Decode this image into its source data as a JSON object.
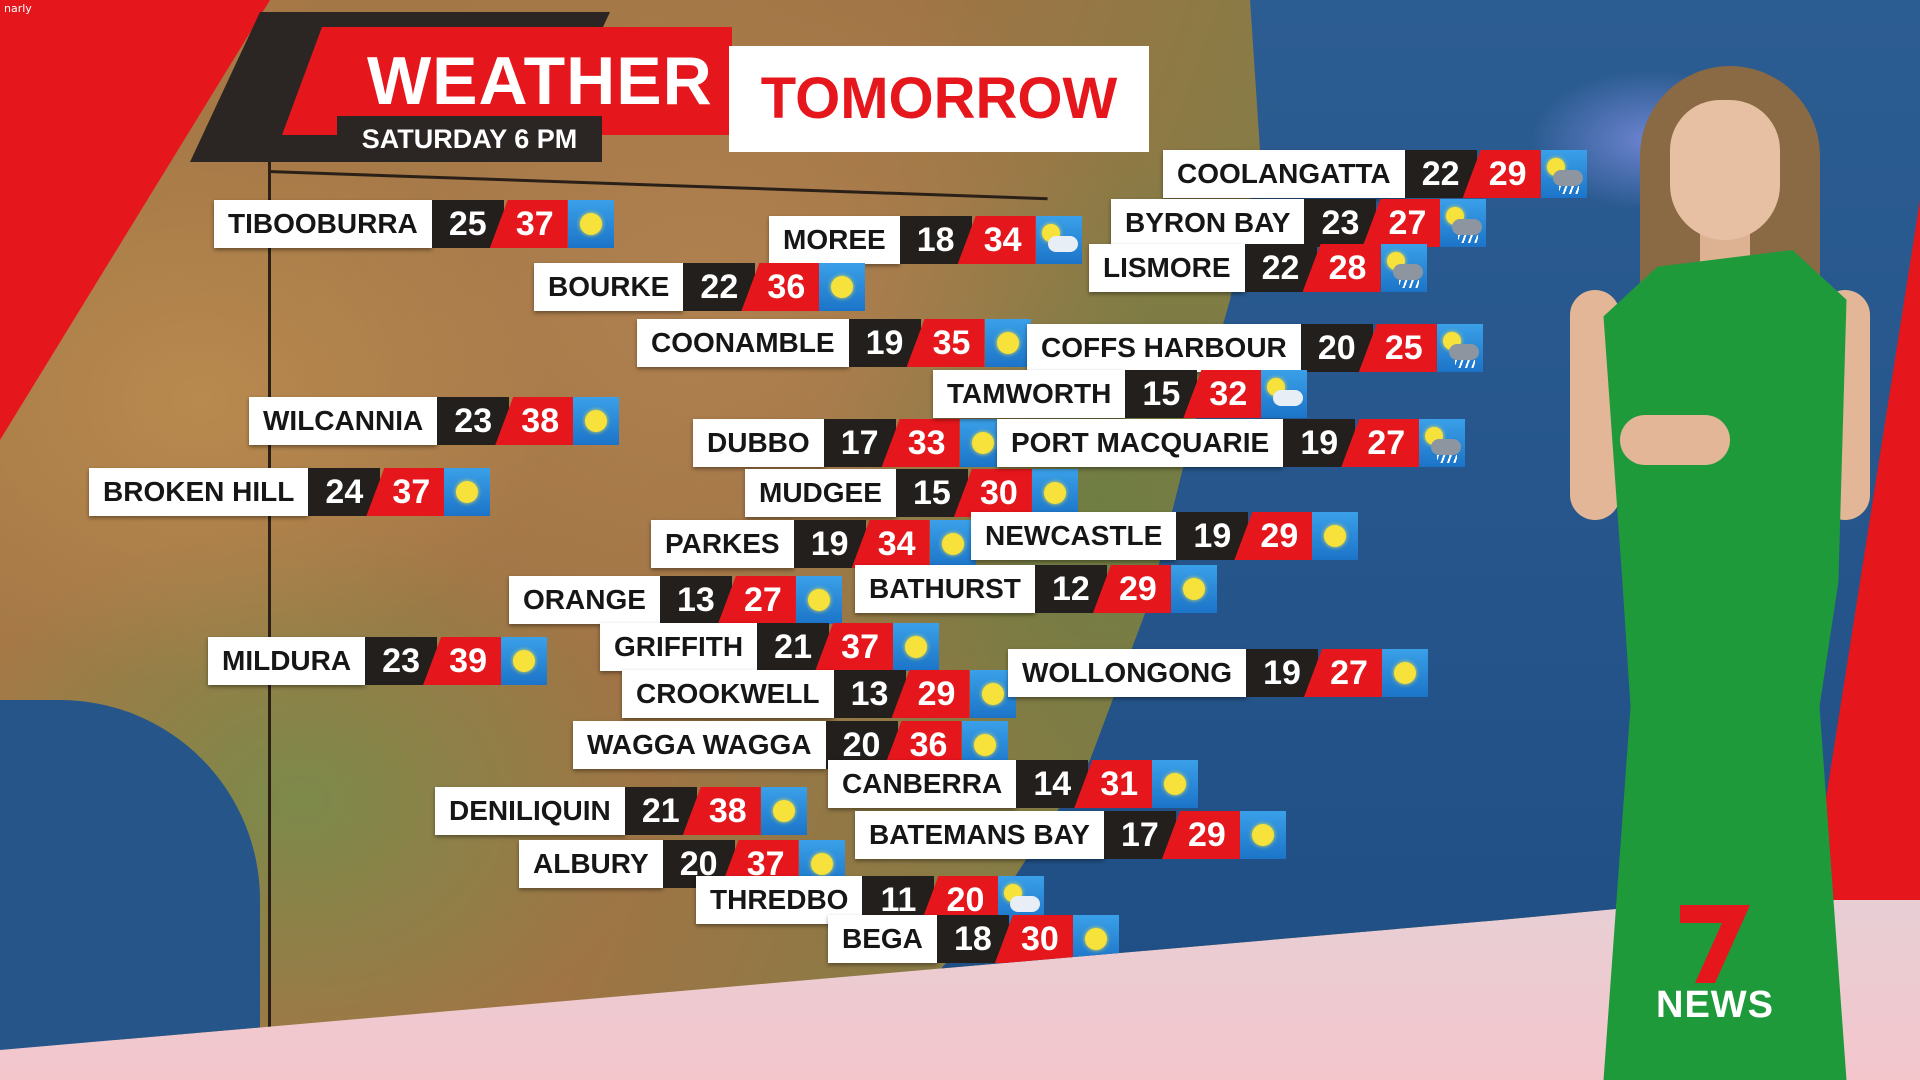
{
  "watermark": "narly",
  "header": {
    "title_main": "WEATHER",
    "title_sub": "TOMORROW",
    "time": "SATURDAY 6 PM"
  },
  "colors": {
    "brand_red": "#e5161c",
    "min_bg": "#231f1d",
    "icon_bg": "#2a8ce0",
    "dress": "#1f9a3a"
  },
  "cities": [
    {
      "name": "TIBOOBURRA",
      "min": "25",
      "max": "37",
      "icon": "sunny"
    },
    {
      "name": "MOREE",
      "min": "18",
      "max": "34",
      "icon": "partly-cloudy"
    },
    {
      "name": "BOURKE",
      "min": "22",
      "max": "36",
      "icon": "sunny"
    },
    {
      "name": "COONAMBLE",
      "min": "19",
      "max": "35",
      "icon": "sunny"
    },
    {
      "name": "WILCANNIA",
      "min": "23",
      "max": "38",
      "icon": "sunny"
    },
    {
      "name": "DUBBO",
      "min": "17",
      "max": "33",
      "icon": "sunny"
    },
    {
      "name": "BROKEN HILL",
      "min": "24",
      "max": "37",
      "icon": "sunny"
    },
    {
      "name": "MUDGEE",
      "min": "15",
      "max": "30",
      "icon": "sunny"
    },
    {
      "name": "PARKES",
      "min": "19",
      "max": "34",
      "icon": "sunny"
    },
    {
      "name": "ORANGE",
      "min": "13",
      "max": "27",
      "icon": "sunny"
    },
    {
      "name": "MILDURA",
      "min": "23",
      "max": "39",
      "icon": "sunny"
    },
    {
      "name": "GRIFFITH",
      "min": "21",
      "max": "37",
      "icon": "sunny"
    },
    {
      "name": "CROOKWELL",
      "min": "13",
      "max": "29",
      "icon": "sunny"
    },
    {
      "name": "WAGGA WAGGA",
      "min": "20",
      "max": "36",
      "icon": "sunny"
    },
    {
      "name": "DENILIQUIN",
      "min": "21",
      "max": "38",
      "icon": "sunny"
    },
    {
      "name": "ALBURY",
      "min": "20",
      "max": "37",
      "icon": "sunny"
    },
    {
      "name": "THREDBO",
      "min": "11",
      "max": "20",
      "icon": "partly-cloudy"
    },
    {
      "name": "BEGA",
      "min": "18",
      "max": "30",
      "icon": "sunny"
    },
    {
      "name": "COOLANGATTA",
      "min": "22",
      "max": "29",
      "icon": "showers"
    },
    {
      "name": "BYRON BAY",
      "min": "23",
      "max": "27",
      "icon": "showers"
    },
    {
      "name": "LISMORE",
      "min": "22",
      "max": "28",
      "icon": "showers"
    },
    {
      "name": "COFFS HARBOUR",
      "min": "20",
      "max": "25",
      "icon": "showers"
    },
    {
      "name": "TAMWORTH",
      "min": "15",
      "max": "32",
      "icon": "partly-cloudy"
    },
    {
      "name": "PORT MACQUARIE",
      "min": "19",
      "max": "27",
      "icon": "showers"
    },
    {
      "name": "NEWCASTLE",
      "min": "19",
      "max": "29",
      "icon": "sunny"
    },
    {
      "name": "BATHURST",
      "min": "12",
      "max": "29",
      "icon": "sunny"
    },
    {
      "name": "WOLLONGONG",
      "min": "19",
      "max": "27",
      "icon": "sunny"
    },
    {
      "name": "CANBERRA",
      "min": "14",
      "max": "31",
      "icon": "sunny"
    },
    {
      "name": "BATEMANS BAY",
      "min": "17",
      "max": "29",
      "icon": "sunny"
    }
  ],
  "logo": {
    "text": "NEWS",
    "numeral": "7"
  }
}
